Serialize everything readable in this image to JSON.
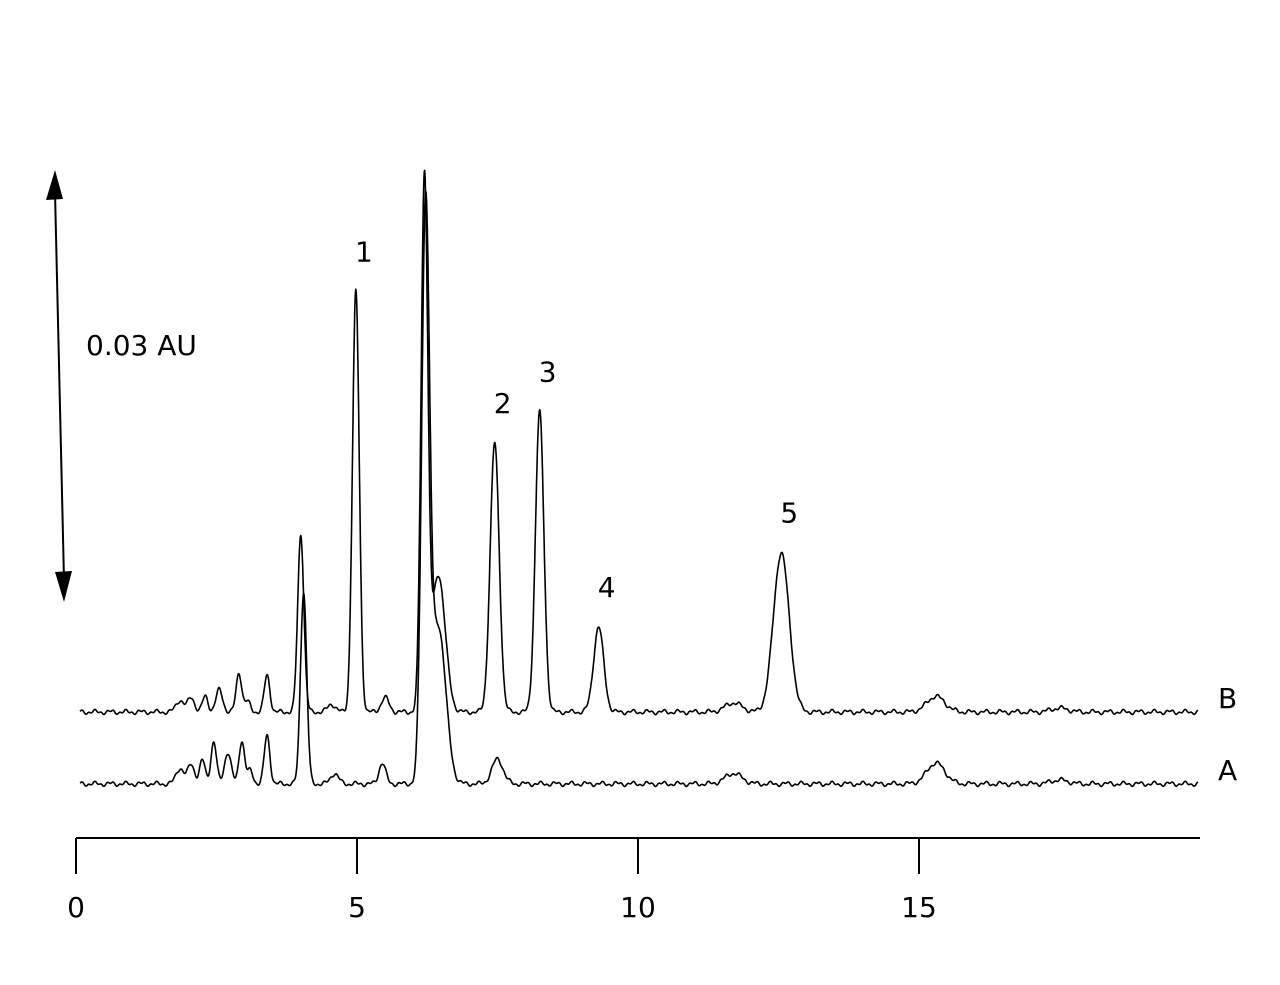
{
  "chart_data": {
    "type": "line",
    "title": "",
    "xlabel": "",
    "ylabel": "",
    "x_ticks": [
      0,
      5,
      10,
      15
    ],
    "x_tick_labels": [
      "0",
      "5",
      "10",
      "15"
    ],
    "xlim": [
      0,
      20
    ],
    "scale_bar": {
      "label": "0.03 AU",
      "value_au": 0.03
    },
    "series": [
      {
        "name": "B",
        "baseline_au": 0.0,
        "peaks": [
          {
            "rt": 1.85,
            "height": 0.0009,
            "width": 0.07
          },
          {
            "rt": 2.05,
            "height": 0.0011,
            "width": 0.06
          },
          {
            "rt": 2.3,
            "height": 0.0012,
            "width": 0.05
          },
          {
            "rt": 2.55,
            "height": 0.0017,
            "width": 0.06
          },
          {
            "rt": 2.9,
            "height": 0.003,
            "width": 0.05
          },
          {
            "rt": 3.05,
            "height": 0.0008,
            "width": 0.05
          },
          {
            "rt": 3.4,
            "height": 0.0028,
            "width": 0.05
          },
          {
            "rt": 4.0,
            "height": 0.0136,
            "width": 0.055
          },
          {
            "rt": 4.55,
            "height": 0.0006,
            "width": 0.07
          },
          {
            "rt": 4.98,
            "height": 0.0322,
            "width": 0.06
          },
          {
            "rt": 5.5,
            "height": 0.0011,
            "width": 0.07
          },
          {
            "rt": 6.2,
            "height": 0.0404,
            "width": 0.06
          },
          {
            "rt": 6.45,
            "height": 0.0105,
            "width": 0.12
          },
          {
            "rt": 7.45,
            "height": 0.0206,
            "width": 0.08
          },
          {
            "rt": 8.25,
            "height": 0.023,
            "width": 0.075
          },
          {
            "rt": 9.3,
            "height": 0.0065,
            "width": 0.09
          },
          {
            "rt": 11.7,
            "height": 0.0007,
            "width": 0.15
          },
          {
            "rt": 12.55,
            "height": 0.0122,
            "width": 0.14
          },
          {
            "rt": 15.3,
            "height": 0.0012,
            "width": 0.16
          },
          {
            "rt": 17.5,
            "height": 0.0003,
            "width": 0.15
          }
        ],
        "peak_labels": [
          {
            "text": "1",
            "rt": 4.98
          },
          {
            "text": "2",
            "rt": 7.45
          },
          {
            "text": "3",
            "rt": 8.25
          },
          {
            "text": "4",
            "rt": 9.3
          },
          {
            "text": "5",
            "rt": 12.55
          }
        ]
      },
      {
        "name": "A",
        "baseline_au": -0.0055,
        "peaks": [
          {
            "rt": 1.85,
            "height": 0.0012,
            "width": 0.07
          },
          {
            "rt": 2.05,
            "height": 0.0015,
            "width": 0.06
          },
          {
            "rt": 2.25,
            "height": 0.0018,
            "width": 0.05
          },
          {
            "rt": 2.45,
            "height": 0.0032,
            "width": 0.05
          },
          {
            "rt": 2.7,
            "height": 0.0024,
            "width": 0.06
          },
          {
            "rt": 2.95,
            "height": 0.0033,
            "width": 0.05
          },
          {
            "rt": 3.1,
            "height": 0.001,
            "width": 0.05
          },
          {
            "rt": 3.4,
            "height": 0.0037,
            "width": 0.05
          },
          {
            "rt": 4.05,
            "height": 0.0147,
            "width": 0.055
          },
          {
            "rt": 4.6,
            "height": 0.0008,
            "width": 0.07
          },
          {
            "rt": 5.45,
            "height": 0.0016,
            "width": 0.06
          },
          {
            "rt": 6.22,
            "height": 0.043,
            "width": 0.07
          },
          {
            "rt": 6.45,
            "height": 0.012,
            "width": 0.13
          },
          {
            "rt": 7.5,
            "height": 0.0019,
            "width": 0.1
          },
          {
            "rt": 11.7,
            "height": 0.0008,
            "width": 0.15
          },
          {
            "rt": 15.3,
            "height": 0.0016,
            "width": 0.16
          },
          {
            "rt": 17.5,
            "height": 0.0003,
            "width": 0.15
          }
        ],
        "peak_labels": []
      }
    ]
  }
}
